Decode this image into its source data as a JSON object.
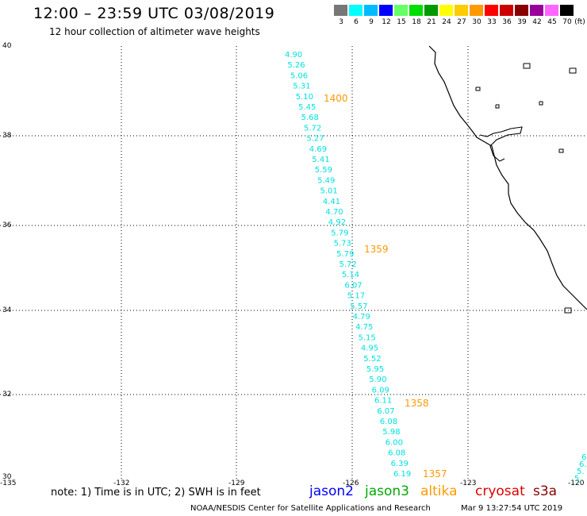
{
  "header": {
    "title": "12:00 – 23:59 UTC 03/08/2019",
    "subtitle": "12 hour collection of altimeter wave heights"
  },
  "color_scale": {
    "unit": "(ft)",
    "items": [
      {
        "label": "3",
        "color": "#777777"
      },
      {
        "label": "6",
        "color": "#00ffff"
      },
      {
        "label": "9",
        "color": "#00bbff"
      },
      {
        "label": "12",
        "color": "#0000ff"
      },
      {
        "label": "15",
        "color": "#66ff66"
      },
      {
        "label": "18",
        "color": "#00dd00"
      },
      {
        "label": "21",
        "color": "#009900"
      },
      {
        "label": "24",
        "color": "#ffff00"
      },
      {
        "label": "27",
        "color": "#ffcc00"
      },
      {
        "label": "30",
        "color": "#ff9900"
      },
      {
        "label": "33",
        "color": "#ff0000"
      },
      {
        "label": "36",
        "color": "#cc0000"
      },
      {
        "label": "39",
        "color": "#880000"
      },
      {
        "label": "42",
        "color": "#990099"
      },
      {
        "label": "45",
        "color": "#ff66ff"
      },
      {
        "label": "70",
        "color": "#000000"
      }
    ]
  },
  "map": {
    "lat_labels": [
      "40",
      "38",
      "36",
      "34",
      "32",
      "30"
    ],
    "lon_labels": [
      "-135",
      "-132",
      "-129",
      "-126",
      "-123",
      "-120"
    ],
    "track_color": "#00e0e0",
    "time_color": "#ff9900",
    "swh_values": [
      "4.90",
      "5.26",
      "5.06",
      "5.31",
      "5.10",
      "5.45",
      "5.68",
      "5.72",
      "5.27",
      "4.69",
      "5.41",
      "5.59",
      "5.49",
      "5.01",
      "4.41",
      "4.70",
      "4.92",
      "5.79",
      "5.73",
      "5.79",
      "5.72",
      "5.14",
      "6.07",
      "5.17",
      "5.57",
      "4.79",
      "4.75",
      "5.15",
      "4.95",
      "5.52",
      "5.95",
      "5.90",
      "6.09",
      "6.11",
      "6.07",
      "6.08",
      "5.98",
      "6.00",
      "6.08",
      "6.39",
      "6.19"
    ],
    "time_labels": [
      "1400",
      "1359",
      "1358",
      "1357"
    ],
    "edge_values": [
      "6.",
      "6.",
      "5.",
      "5."
    ]
  },
  "footer": {
    "note": "note: 1) Time is in UTC; 2) SWH is in feet",
    "satellites": [
      {
        "name": "jason2",
        "color": "#0000ff"
      },
      {
        "name": "jason3",
        "color": "#00aa00"
      },
      {
        "name": "altika",
        "color": "#ff9900"
      },
      {
        "name": "cryosat",
        "color": "#dd0000"
      },
      {
        "name": "s3a",
        "color": "#880000"
      }
    ],
    "credit": "NOAA/NESDIS Center for Satellite Applications and Research",
    "timestamp": "Mar  9 13:27:54 UTC 2019"
  }
}
